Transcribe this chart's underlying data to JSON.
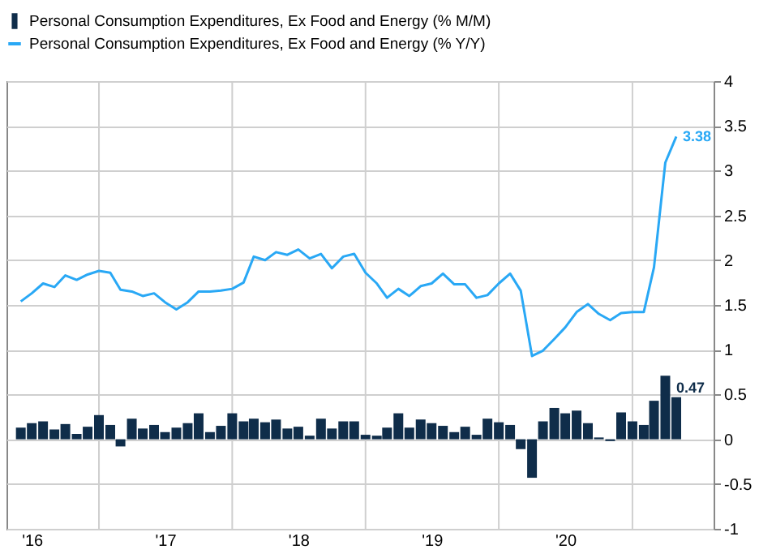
{
  "chart_data": {
    "type": "bar",
    "x": [
      "2016-06",
      "2016-07",
      "2016-08",
      "2016-09",
      "2016-10",
      "2016-11",
      "2016-12",
      "2017-01",
      "2017-02",
      "2017-03",
      "2017-04",
      "2017-05",
      "2017-06",
      "2017-07",
      "2017-08",
      "2017-09",
      "2017-10",
      "2017-11",
      "2017-12",
      "2018-01",
      "2018-02",
      "2018-03",
      "2018-04",
      "2018-05",
      "2018-06",
      "2018-07",
      "2018-08",
      "2018-09",
      "2018-10",
      "2018-11",
      "2018-12",
      "2019-01",
      "2019-02",
      "2019-03",
      "2019-04",
      "2019-05",
      "2019-06",
      "2019-07",
      "2019-08",
      "2019-09",
      "2019-10",
      "2019-11",
      "2019-12",
      "2020-01",
      "2020-02",
      "2020-03",
      "2020-04",
      "2020-05",
      "2020-06",
      "2020-07",
      "2020-08",
      "2020-09",
      "2020-10",
      "2020-11",
      "2020-12",
      "2021-01",
      "2021-02",
      "2021-03",
      "2021-04",
      "2021-05"
    ],
    "series": [
      {
        "name": "Personal Consumption Expenditures, Ex Food and Energy (% M/M)",
        "color": "#0f2d4a",
        "values": [
          0.13,
          0.18,
          0.2,
          0.11,
          0.17,
          0.06,
          0.14,
          0.27,
          0.16,
          -0.08,
          0.23,
          0.12,
          0.16,
          0.08,
          0.13,
          0.18,
          0.29,
          0.08,
          0.15,
          0.29,
          0.2,
          0.23,
          0.19,
          0.22,
          0.12,
          0.14,
          0.04,
          0.23,
          0.12,
          0.2,
          0.2,
          0.05,
          0.04,
          0.13,
          0.29,
          0.13,
          0.22,
          0.18,
          0.15,
          0.08,
          0.14,
          0.05,
          0.23,
          0.19,
          0.16,
          -0.11,
          -0.43,
          0.2,
          0.35,
          0.29,
          0.32,
          0.18,
          0.02,
          -0.02,
          0.3,
          0.2,
          0.16,
          0.43,
          0.71,
          0.47
        ],
        "value_labels": [
          null,
          null,
          null,
          null,
          null,
          null,
          null,
          null,
          null,
          null,
          null,
          null,
          null,
          null,
          null,
          null,
          null,
          null,
          null,
          null,
          null,
          null,
          null,
          null,
          null,
          null,
          null,
          null,
          null,
          null,
          null,
          null,
          null,
          null,
          null,
          null,
          null,
          null,
          null,
          null,
          null,
          null,
          null,
          null,
          null,
          null,
          null,
          null,
          null,
          null,
          null,
          null,
          null,
          null,
          null,
          null,
          null,
          null,
          null,
          "0.47"
        ]
      },
      {
        "name": "Personal Consumption Expenditures, Ex Food and Energy (% Y/Y)",
        "type": "line",
        "color": "#29a8f5",
        "values": [
          1.54,
          1.63,
          1.74,
          1.7,
          1.83,
          1.78,
          1.84,
          1.88,
          1.86,
          1.67,
          1.65,
          1.6,
          1.63,
          1.53,
          1.45,
          1.53,
          1.65,
          1.65,
          1.66,
          1.68,
          1.75,
          2.04,
          2.0,
          2.09,
          2.06,
          2.12,
          2.02,
          2.07,
          1.91,
          2.04,
          2.07,
          1.86,
          1.74,
          1.58,
          1.68,
          1.6,
          1.71,
          1.74,
          1.85,
          1.73,
          1.73,
          1.58,
          1.61,
          1.74,
          1.85,
          1.66,
          0.93,
          0.99,
          1.12,
          1.25,
          1.42,
          1.51,
          1.4,
          1.33,
          1.41,
          1.42,
          1.42,
          1.92,
          3.09,
          3.38
        ],
        "value_labels": [
          null,
          null,
          null,
          null,
          null,
          null,
          null,
          null,
          null,
          null,
          null,
          null,
          null,
          null,
          null,
          null,
          null,
          null,
          null,
          null,
          null,
          null,
          null,
          null,
          null,
          null,
          null,
          null,
          null,
          null,
          null,
          null,
          null,
          null,
          null,
          null,
          null,
          null,
          null,
          null,
          null,
          null,
          null,
          null,
          null,
          null,
          null,
          null,
          null,
          null,
          null,
          null,
          null,
          null,
          null,
          null,
          null,
          null,
          null,
          "3.38"
        ]
      }
    ],
    "xlim": [
      "2016-05-15",
      "2021-07-20"
    ],
    "xticks": [
      {
        "value": "2016-07",
        "label": "'16"
      },
      {
        "value": "2017-01",
        "label": null
      },
      {
        "value": "2017-07",
        "label": "'17"
      },
      {
        "value": "2018-01",
        "label": null
      },
      {
        "value": "2018-07",
        "label": "'18"
      },
      {
        "value": "2019-01",
        "label": null
      },
      {
        "value": "2019-07",
        "label": "'19"
      },
      {
        "value": "2020-01",
        "label": null
      },
      {
        "value": "2020-07",
        "label": "'20"
      },
      {
        "value": "2021-01",
        "label": null
      }
    ],
    "ylim": [
      -1,
      4
    ],
    "yticks": [
      -1,
      -0.5,
      0,
      0.5,
      1,
      1.5,
      2,
      2.5,
      3,
      3.5,
      4
    ],
    "grid": true,
    "legend": "top"
  }
}
